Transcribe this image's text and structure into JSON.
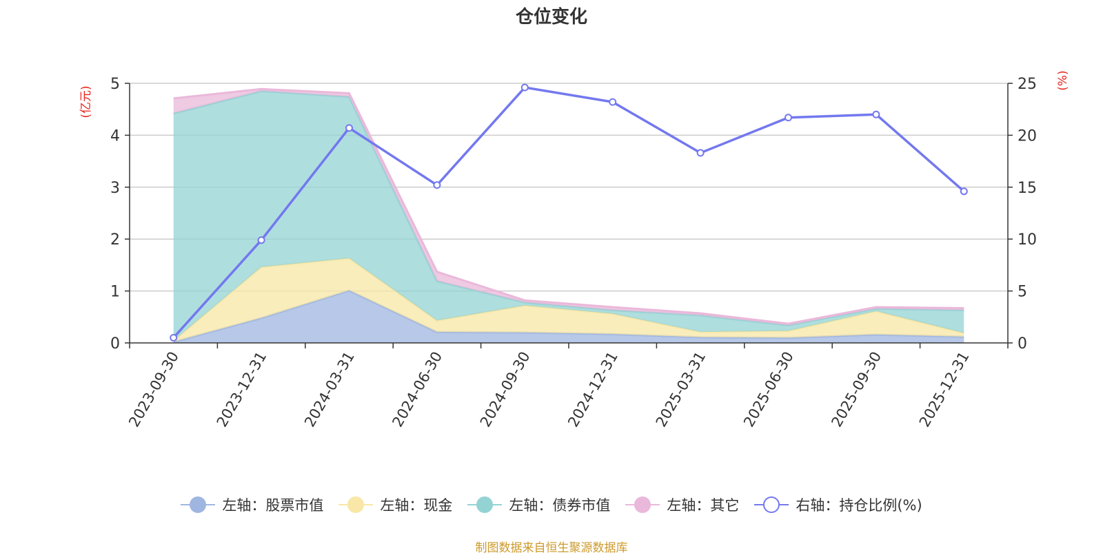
{
  "chart_data": {
    "type": "area",
    "title": "仓位变化",
    "categories": [
      "2023-09-30",
      "2023-12-31",
      "2024-03-31",
      "2024-06-30",
      "2024-09-30",
      "2024-12-31",
      "2025-03-31",
      "2025-06-30",
      "2025-09-30",
      "2025-12-31"
    ],
    "left_axis": {
      "label": "(亿元)",
      "min": 0,
      "max": 5,
      "ticks": [
        "0",
        "1",
        "2",
        "3",
        "4",
        "5"
      ]
    },
    "right_axis": {
      "label": "(%)",
      "min": 0,
      "max": 25,
      "ticks": [
        "0",
        "5",
        "10",
        "15",
        "20",
        "25"
      ]
    },
    "stacked_series": [
      {
        "name": "左轴：股票市值",
        "color": "#9fb6e0",
        "values": [
          0.02,
          0.48,
          1.01,
          0.21,
          0.2,
          0.17,
          0.11,
          0.1,
          0.16,
          0.12
        ]
      },
      {
        "name": "左轴：现金",
        "color": "#f8e7a6",
        "values": [
          0.02,
          0.98,
          0.62,
          0.22,
          0.52,
          0.39,
          0.1,
          0.13,
          0.45,
          0.07
        ]
      },
      {
        "name": "左轴：债券市值",
        "color": "#94d3d4",
        "values": [
          4.38,
          3.39,
          3.11,
          0.76,
          0.06,
          0.07,
          0.32,
          0.11,
          0.05,
          0.44
        ]
      },
      {
        "name": "左轴：其它",
        "color": "#eab8da",
        "values": [
          0.29,
          0.04,
          0.07,
          0.18,
          0.04,
          0.06,
          0.04,
          0.03,
          0.03,
          0.04
        ]
      }
    ],
    "line_series": {
      "name": "右轴：持仓比例(%)",
      "color": "#7378ee",
      "values": [
        0.5,
        9.9,
        20.7,
        15.2,
        24.6,
        23.2,
        18.3,
        21.7,
        22.0,
        14.6
      ]
    },
    "legend_position": "bottom-center",
    "grid": true
  },
  "footer": {
    "source": "制图数据来自恒生聚源数据库"
  }
}
